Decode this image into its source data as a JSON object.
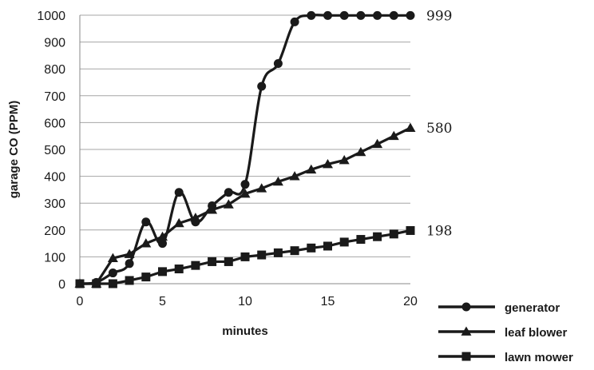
{
  "chart_data": {
    "type": "line",
    "xlabel": "minutes",
    "ylabel": "garage CO (PPM)",
    "xlim": [
      0,
      20
    ],
    "ylim": [
      0,
      1000
    ],
    "x_ticks": [
      0,
      5,
      10,
      15,
      20
    ],
    "y_ticks": [
      0,
      100,
      200,
      300,
      400,
      500,
      600,
      700,
      800,
      900,
      1000
    ],
    "grid": "horizontal",
    "legend_position": "bottom-right",
    "x": [
      0,
      1,
      2,
      3,
      4,
      5,
      6,
      7,
      8,
      9,
      10,
      11,
      12,
      13,
      14,
      15,
      16,
      17,
      18,
      19,
      20
    ],
    "series": [
      {
        "name": "generator",
        "marker": "circle",
        "end_label": "999",
        "values": [
          0,
          5,
          40,
          75,
          230,
          150,
          340,
          230,
          290,
          340,
          370,
          735,
          820,
          975,
          999,
          999,
          999,
          999,
          999,
          999,
          999
        ]
      },
      {
        "name": "leaf blower",
        "marker": "triangle",
        "end_label": "580",
        "values": [
          0,
          0,
          95,
          110,
          150,
          175,
          225,
          245,
          275,
          295,
          335,
          355,
          380,
          400,
          425,
          445,
          460,
          490,
          520,
          550,
          580
        ]
      },
      {
        "name": "lawn mower",
        "marker": "square",
        "end_label": "198",
        "values": [
          0,
          0,
          0,
          12,
          25,
          45,
          55,
          68,
          82,
          82,
          100,
          107,
          115,
          123,
          133,
          140,
          155,
          165,
          175,
          185,
          198
        ]
      }
    ],
    "colors": {
      "line": "#1a1a1a",
      "grid": "#a6a6a6",
      "axis": "#888888"
    }
  }
}
